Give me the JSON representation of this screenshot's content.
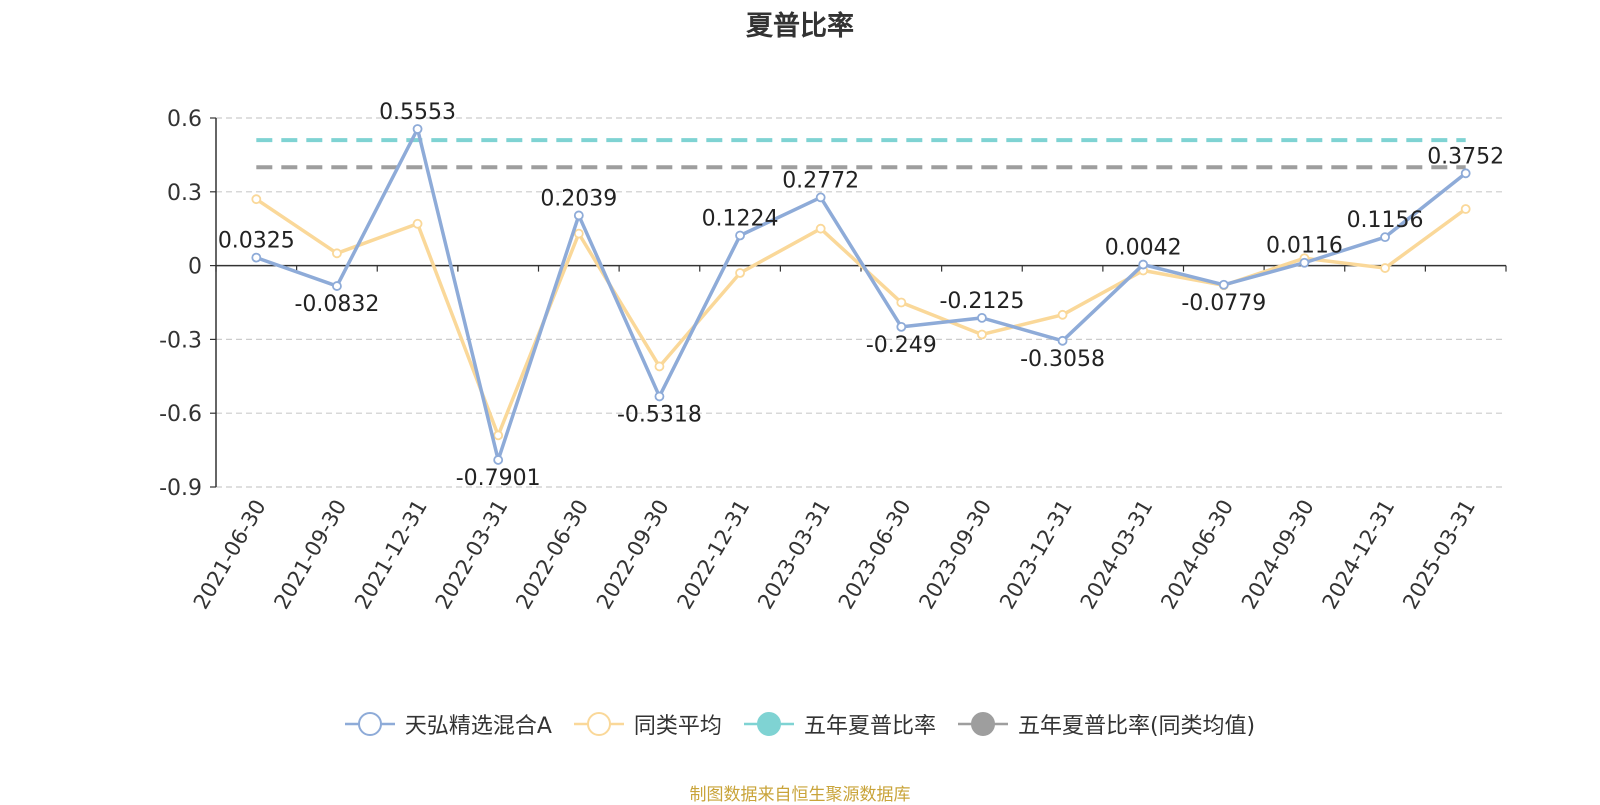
{
  "chart_data": {
    "type": "line",
    "title": "夏普比率",
    "categories": [
      "2021-06-30",
      "2021-09-30",
      "2021-12-31",
      "2022-03-31",
      "2022-06-30",
      "2022-09-30",
      "2022-12-31",
      "2023-03-31",
      "2023-06-30",
      "2023-09-30",
      "2023-12-31",
      "2024-03-31",
      "2024-06-30",
      "2024-09-30",
      "2024-12-31",
      "2025-03-31"
    ],
    "ylim": [
      -0.9,
      0.6
    ],
    "yticks": [
      "0.6",
      "0.3",
      "0",
      "-0.3",
      "-0.6",
      "-0.9"
    ],
    "grid": true,
    "legend_position": "bottom",
    "series": [
      {
        "name": "天弘精选混合A",
        "color": "#8eabd8",
        "values": [
          0.0325,
          -0.0832,
          0.5553,
          -0.7901,
          0.2039,
          -0.5318,
          0.1224,
          0.2772,
          -0.249,
          -0.2125,
          -0.3058,
          0.0042,
          -0.0779,
          0.0116,
          0.1156,
          0.3752
        ],
        "labels": [
          "0.0325",
          "-0.0832",
          "0.5553",
          "-0.7901",
          "0.2039",
          "-0.5318",
          "0.1224",
          "0.2772",
          "-0.249",
          "-0.2125",
          "-0.3058",
          "0.0042",
          "-0.0779",
          "0.0116",
          "0.1156",
          "0.3752"
        ]
      },
      {
        "name": "同类平均",
        "color": "#fad899",
        "values": [
          0.27,
          0.05,
          0.17,
          -0.69,
          0.13,
          -0.41,
          -0.03,
          0.15,
          -0.15,
          -0.28,
          -0.2,
          -0.02,
          -0.08,
          0.03,
          -0.01,
          0.23
        ]
      }
    ],
    "reference_lines": [
      {
        "name": "五年夏普比率",
        "color": "#7fd3d3",
        "value": 0.51
      },
      {
        "name": "五年夏普比率(同类均值)",
        "color": "#9e9e9e",
        "value": 0.4
      }
    ]
  },
  "source_text": "制图数据来自恒生聚源数据库"
}
